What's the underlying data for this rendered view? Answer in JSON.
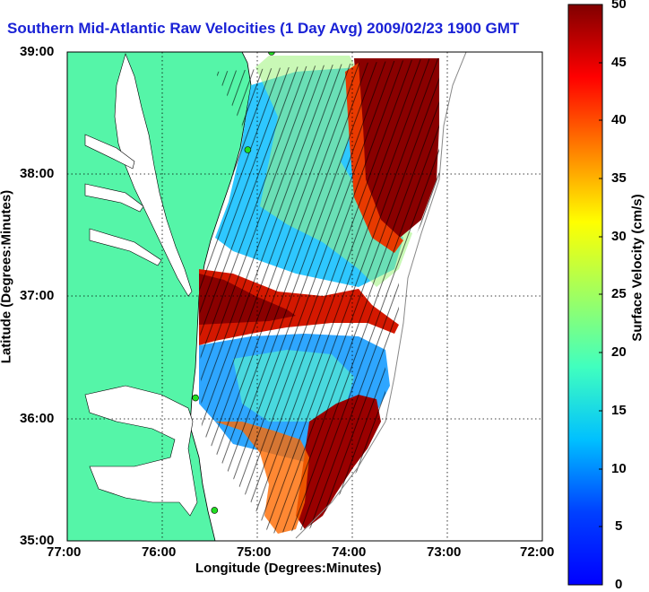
{
  "title": "Southern Mid-Atlantic Raw Velocities (1 Day Avg) 2009/02/23 1900 GMT",
  "axes": {
    "xlabel": "Longitude (Degrees:Minutes)",
    "ylabel": "Latitude (Degrees:Minutes)",
    "x_ticks": [
      "77:00",
      "76:00",
      "75:00",
      "74:00",
      "73:00",
      "72:00"
    ],
    "y_ticks": [
      "39:00",
      "38:00",
      "37:00",
      "36:00",
      "35:00"
    ]
  },
  "colorbar": {
    "label": "Surface Velocity (cm/s)",
    "ticks": [
      "50",
      "45",
      "40",
      "35",
      "30",
      "25",
      "20",
      "15",
      "10",
      "5",
      "0"
    ],
    "min": 0,
    "max": 50,
    "colormap": "jet"
  },
  "colors": {
    "land": "#55f5a8",
    "title": "#1a22d6",
    "station": "#22dd22"
  },
  "stations": [
    {
      "lon": -74.85,
      "lat": 39.0
    },
    {
      "lon": -75.1,
      "lat": 38.2
    },
    {
      "lon": -75.65,
      "lat": 36.17
    },
    {
      "lon": -75.45,
      "lat": 35.25
    }
  ],
  "velocity_regions": [
    {
      "name": "north-offshore",
      "speed": 48
    },
    {
      "name": "central-jet",
      "speed": 42
    },
    {
      "name": "shelf-north",
      "speed": 12
    },
    {
      "name": "shelf-south",
      "speed": 10
    },
    {
      "name": "southeast-jet",
      "speed": 46
    }
  ]
}
